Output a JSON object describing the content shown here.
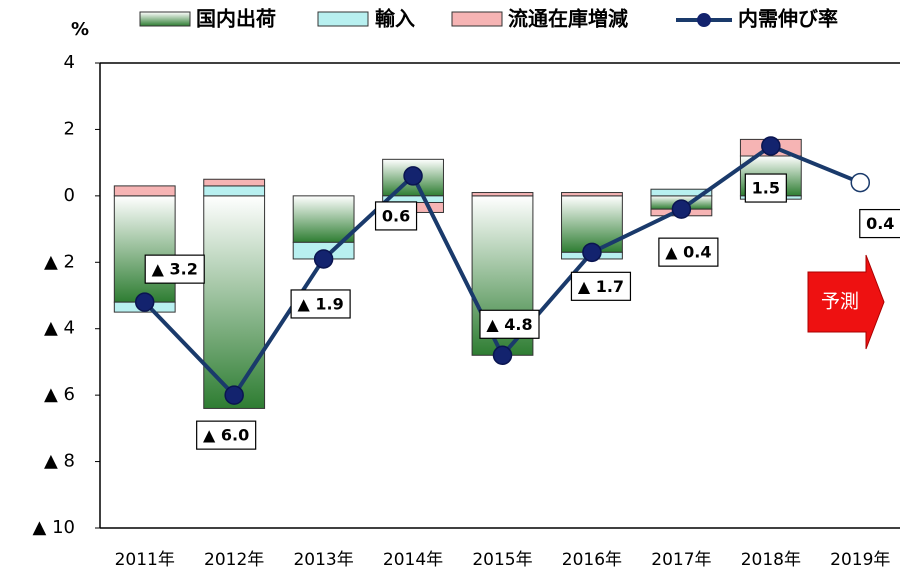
{
  "chart_data": {
    "type": "bar+line",
    "y_label": "%",
    "categories": [
      "2011年",
      "2012年",
      "2013年",
      "2014年",
      "2015年",
      "2016年",
      "2017年",
      "2018年",
      "2019年"
    ],
    "series": [
      {
        "name": "国内出荷",
        "type": "bar",
        "color": "#2e7d32",
        "values": [
          -3.2,
          -6.4,
          -1.4,
          1.1,
          -4.8,
          -1.7,
          -0.4,
          1.2,
          null
        ]
      },
      {
        "name": "輸入",
        "type": "bar",
        "color": "#b8f0f0",
        "values": [
          -0.3,
          0.3,
          -0.5,
          -0.2,
          0,
          -0.2,
          0.2,
          -0.1,
          null
        ]
      },
      {
        "name": "流通在庫増減",
        "type": "bar",
        "color": "#f6b4b4",
        "values": [
          0.3,
          0.2,
          0,
          -0.3,
          0.1,
          0.1,
          -0.2,
          0.5,
          null
        ]
      },
      {
        "name": "内需伸び率",
        "type": "line",
        "color": "#1a3a6b",
        "values": [
          -3.2,
          -6.0,
          -1.9,
          0.6,
          -4.8,
          -1.7,
          -0.4,
          1.5,
          0.4
        ],
        "value_labels": [
          "▲ 3.2",
          "▲ 6.0",
          "▲ 1.9",
          "0.6",
          "▲ 4.8",
          "▲ 1.7",
          "▲ 0.4",
          "1.5",
          "0.4"
        ]
      }
    ],
    "annotation": "予測",
    "ylim": [
      -10,
      4
    ],
    "yticks": [
      {
        "value": -10,
        "label": "▲ 10"
      },
      {
        "value": -8,
        "label": "▲ 8"
      },
      {
        "value": -6,
        "label": "▲ 6"
      },
      {
        "value": -4,
        "label": "▲ 4"
      },
      {
        "value": -2,
        "label": "▲ 2"
      },
      0,
      2,
      4
    ],
    "grid": false
  }
}
